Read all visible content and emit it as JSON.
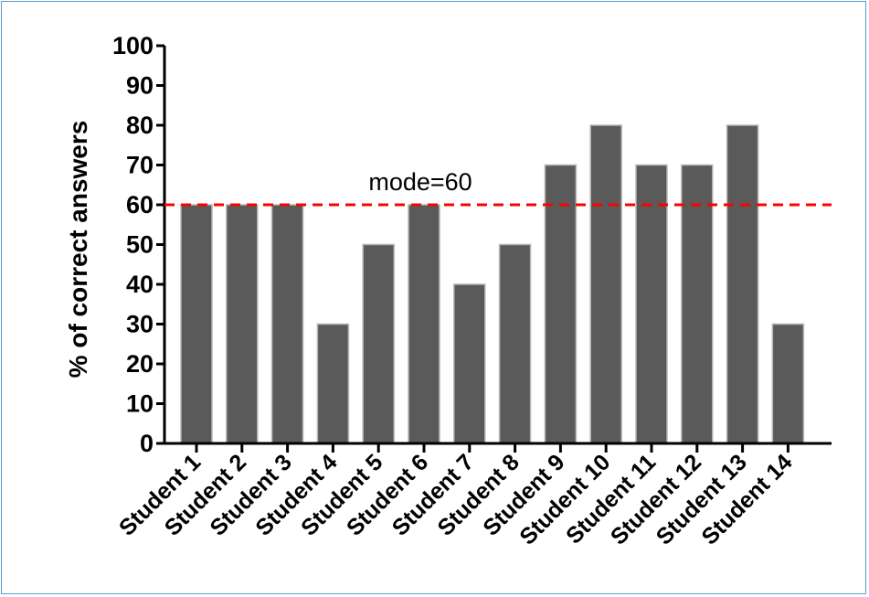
{
  "chart_data": {
    "type": "bar",
    "categories": [
      "Student 1",
      "Student 2",
      "Student 3",
      "Student 4",
      "Student 5",
      "Student 6",
      "Student 7",
      "Student 8",
      "Student 9",
      "Student 10",
      "Student 11",
      "Student 12",
      "Student 13",
      "Student 14"
    ],
    "values": [
      60,
      60,
      60,
      30,
      50,
      60,
      40,
      50,
      70,
      80,
      70,
      70,
      80,
      30
    ],
    "ylabel": "% of correct answers",
    "xlabel": "",
    "ylim": [
      0,
      100
    ],
    "yticks": [
      0,
      10,
      20,
      30,
      40,
      50,
      60,
      70,
      80,
      90,
      100
    ],
    "reference_line": {
      "value": 60,
      "label": "mode=60",
      "color": "#ff0000",
      "style": "dashed"
    },
    "bar_color": "#5a5a5a",
    "grid": false
  }
}
